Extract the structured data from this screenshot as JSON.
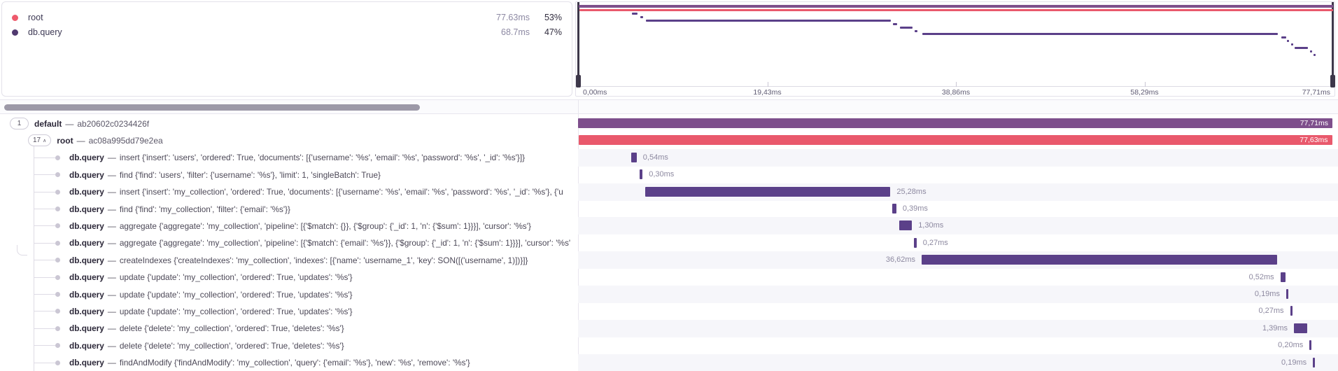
{
  "colors": {
    "transaction_purple": "#7e4f8c",
    "root_red": "#e9596c",
    "span_purple": "#5b4089",
    "legend_root_dot": "#ee5a6c",
    "legend_db_dot": "#513a70"
  },
  "legend": {
    "items": [
      {
        "name": "root",
        "duration": "77.63ms",
        "percent": "53%",
        "color": "#ee5a6c"
      },
      {
        "name": "db.query",
        "duration": "68.7ms",
        "percent": "47%",
        "color": "#513a70"
      }
    ]
  },
  "minimap": {
    "total_ms": 77.71,
    "axis_labels": [
      "0,00ms",
      "19,43ms",
      "38,86ms",
      "58,29ms",
      "77,71ms"
    ]
  },
  "waterfall": {
    "rows": [
      {
        "kind": "txn",
        "badge": "1",
        "chevron": "",
        "title": "default",
        "sep": "—",
        "subtitle": "ab20602c0234426f",
        "start": 0.0,
        "dur": 77.71,
        "color": "#7e4f8c",
        "inside_label": "77,71ms"
      },
      {
        "kind": "txn",
        "badge": "17",
        "chevron": "∧",
        "title": "root",
        "sep": "—",
        "subtitle": "ac08a995dd79e2ea",
        "start": 0.05,
        "dur": 77.63,
        "color": "#e9596c",
        "inside_label": "77,63ms"
      },
      {
        "kind": "span",
        "title": "db.query",
        "sep": "—",
        "desc": "insert {'insert': 'users', 'ordered': True, 'documents': [{'username': '%s', 'email': '%s', 'password': '%s', '_id': '%s'}]}",
        "start": 5.5,
        "dur": 0.54,
        "label": "0,54ms",
        "label_side": "right",
        "striped": true
      },
      {
        "kind": "span",
        "title": "db.query",
        "sep": "—",
        "desc": "find {'find': 'users', 'filter': {'username': '%s'}, 'limit': 1, 'singleBatch': True}",
        "start": 6.35,
        "dur": 0.3,
        "label": "0,30ms",
        "label_side": "right",
        "striped": false
      },
      {
        "kind": "span",
        "title": "db.query",
        "sep": "—",
        "desc": "insert {'insert': 'my_collection', 'ordered': True, 'documents': [{'username': '%s', 'email': '%s', 'password': '%s', '_id': '%s'}, {'u",
        "start": 6.9,
        "dur": 25.28,
        "label": "25,28ms",
        "label_side": "right",
        "striped": true
      },
      {
        "kind": "span",
        "title": "db.query",
        "sep": "—",
        "desc": "find {'find': 'my_collection', 'filter': {'email': '%s'}}",
        "start": 32.4,
        "dur": 0.39,
        "label": "0,39ms",
        "label_side": "right",
        "striped": false
      },
      {
        "kind": "span",
        "title": "db.query",
        "sep": "—",
        "desc": "aggregate {'aggregate': 'my_collection', 'pipeline': [{'$match': {}}, {'$group': {'_id': 1, 'n': {'$sum': 1}}}], 'cursor': '%s'}",
        "start": 33.1,
        "dur": 1.3,
        "label": "1,30ms",
        "label_side": "right",
        "striped": true
      },
      {
        "kind": "span",
        "title": "db.query",
        "sep": "—",
        "desc": "aggregate {'aggregate': 'my_collection', 'pipeline': [{'$match': {'email': '%s'}}, {'$group': {'_id': 1, 'n': {'$sum': 1}}}], 'cursor': '%s'",
        "start": 34.6,
        "dur": 0.27,
        "label": "0,27ms",
        "label_side": "right",
        "striped": false
      },
      {
        "kind": "span",
        "title": "db.query",
        "sep": "—",
        "desc": "createIndexes {'createIndexes': 'my_collection', 'indexes': [{'name': 'username_1', 'key': SON([('username', 1)])}]}",
        "start": 35.4,
        "dur": 36.62,
        "label": "36,62ms",
        "label_side": "left",
        "striped": true
      },
      {
        "kind": "span",
        "title": "db.query",
        "sep": "—",
        "desc": "update {'update': 'my_collection', 'ordered': True, 'updates': '%s'}",
        "start": 72.35,
        "dur": 0.52,
        "label": "0,52ms",
        "label_side": "left",
        "striped": false
      },
      {
        "kind": "span",
        "title": "db.query",
        "sep": "—",
        "desc": "update {'update': 'my_collection', 'ordered': True, 'updates': '%s'}",
        "start": 72.95,
        "dur": 0.19,
        "label": "0,19ms",
        "label_side": "left",
        "striped": true
      },
      {
        "kind": "span",
        "title": "db.query",
        "sep": "—",
        "desc": "update {'update': 'my_collection', 'ordered': True, 'updates': '%s'}",
        "start": 73.35,
        "dur": 0.27,
        "label": "0,27ms",
        "label_side": "left",
        "striped": false
      },
      {
        "kind": "span",
        "title": "db.query",
        "sep": "—",
        "desc": "delete {'delete': 'my_collection', 'ordered': True, 'deletes': '%s'}",
        "start": 73.75,
        "dur": 1.39,
        "label": "1,39ms",
        "label_side": "left",
        "striped": true
      },
      {
        "kind": "span",
        "title": "db.query",
        "sep": "—",
        "desc": "delete {'delete': 'my_collection', 'ordered': True, 'deletes': '%s'}",
        "start": 75.35,
        "dur": 0.2,
        "label": "0,20ms",
        "label_side": "left",
        "striped": false
      },
      {
        "kind": "span",
        "title": "db.query",
        "sep": "—",
        "desc": "findAndModify {'findAndModify': 'my_collection', 'query': {'email': '%s'}, 'new': '%s', 'remove': '%s'}",
        "start": 75.7,
        "dur": 0.19,
        "label": "0,19ms",
        "label_side": "left",
        "striped": true
      }
    ]
  }
}
